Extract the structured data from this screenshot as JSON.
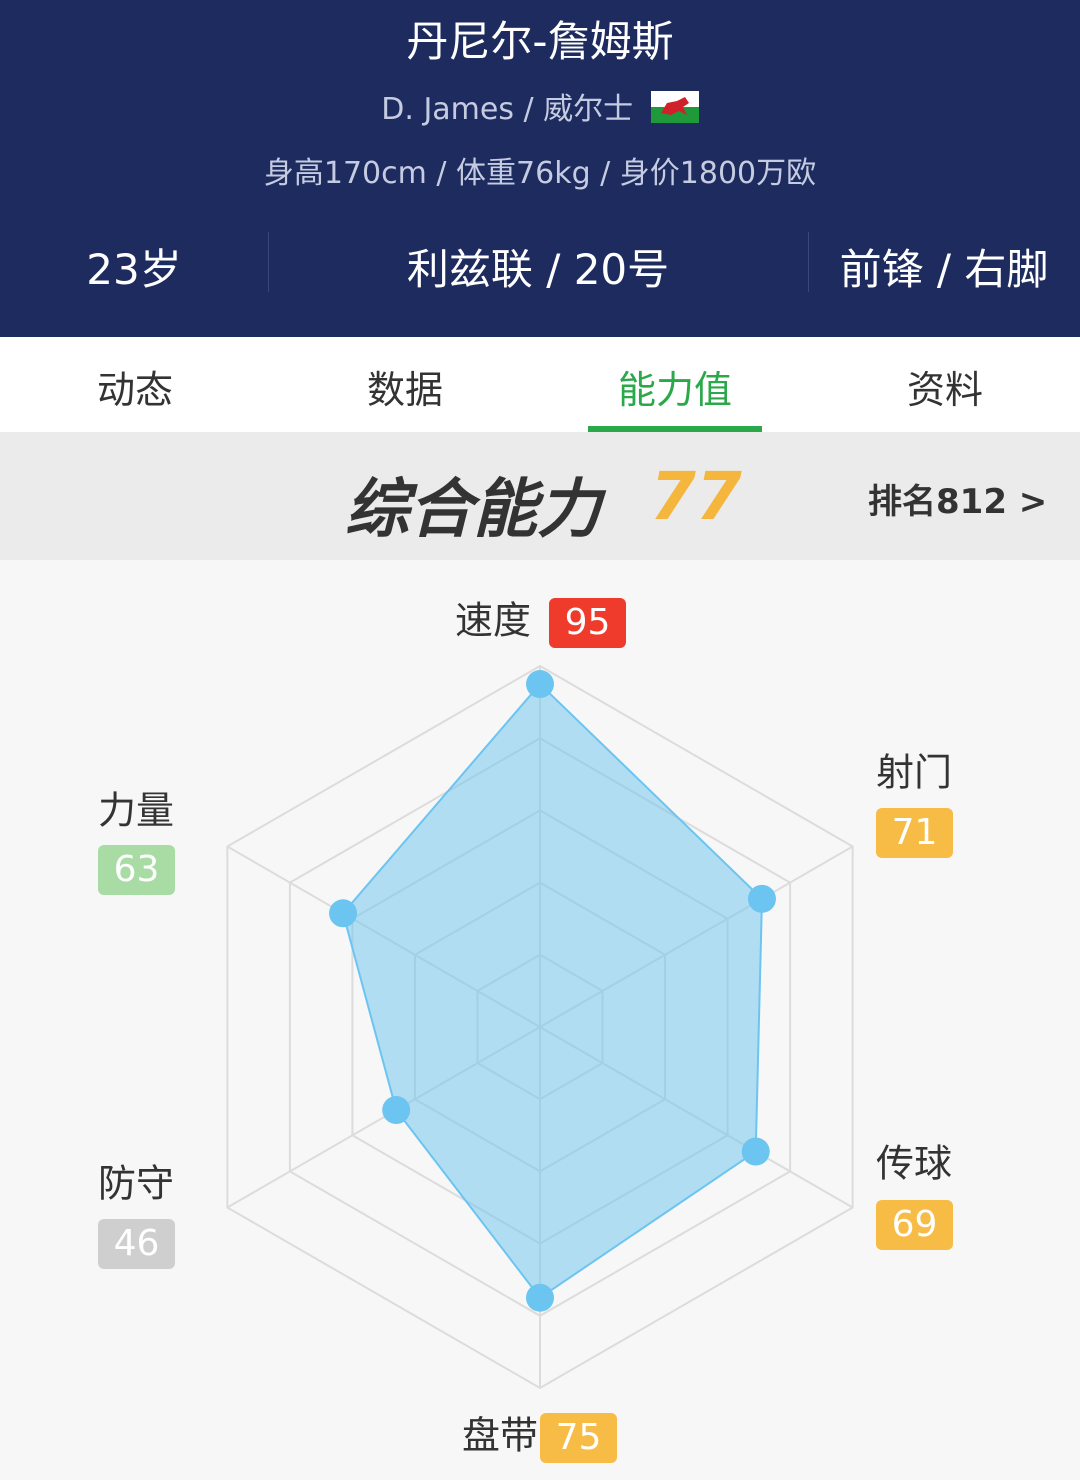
{
  "header": {
    "name": "丹尼尔-詹姆斯",
    "subtitle": "D. James / 威尔士",
    "info": "身高170cm / 体重76kg / 身价1800万欧",
    "stats": [
      "23岁",
      "利兹联 / 20号",
      "前锋 / 右脚"
    ]
  },
  "tabs": {
    "items": [
      "动态",
      "数据",
      "能力值",
      "资料"
    ],
    "active": 2
  },
  "overall": {
    "label": "综合能力",
    "value": 77,
    "rank": "排名812 >"
  },
  "chart_data": {
    "type": "radar",
    "categories": [
      "速度",
      "射门",
      "传球",
      "盘带",
      "防守",
      "力量"
    ],
    "values": [
      95,
      71,
      69,
      75,
      46,
      63
    ],
    "badge_colors": [
      "#ee3b2b",
      "#f7bc45",
      "#f7bc45",
      "#f7bc45",
      "#cfcfcf",
      "#a9dca4"
    ],
    "rlim": [
      0,
      100
    ],
    "rticks": [
      20,
      40,
      60,
      80,
      100
    ],
    "color": "#6cc4f0"
  }
}
